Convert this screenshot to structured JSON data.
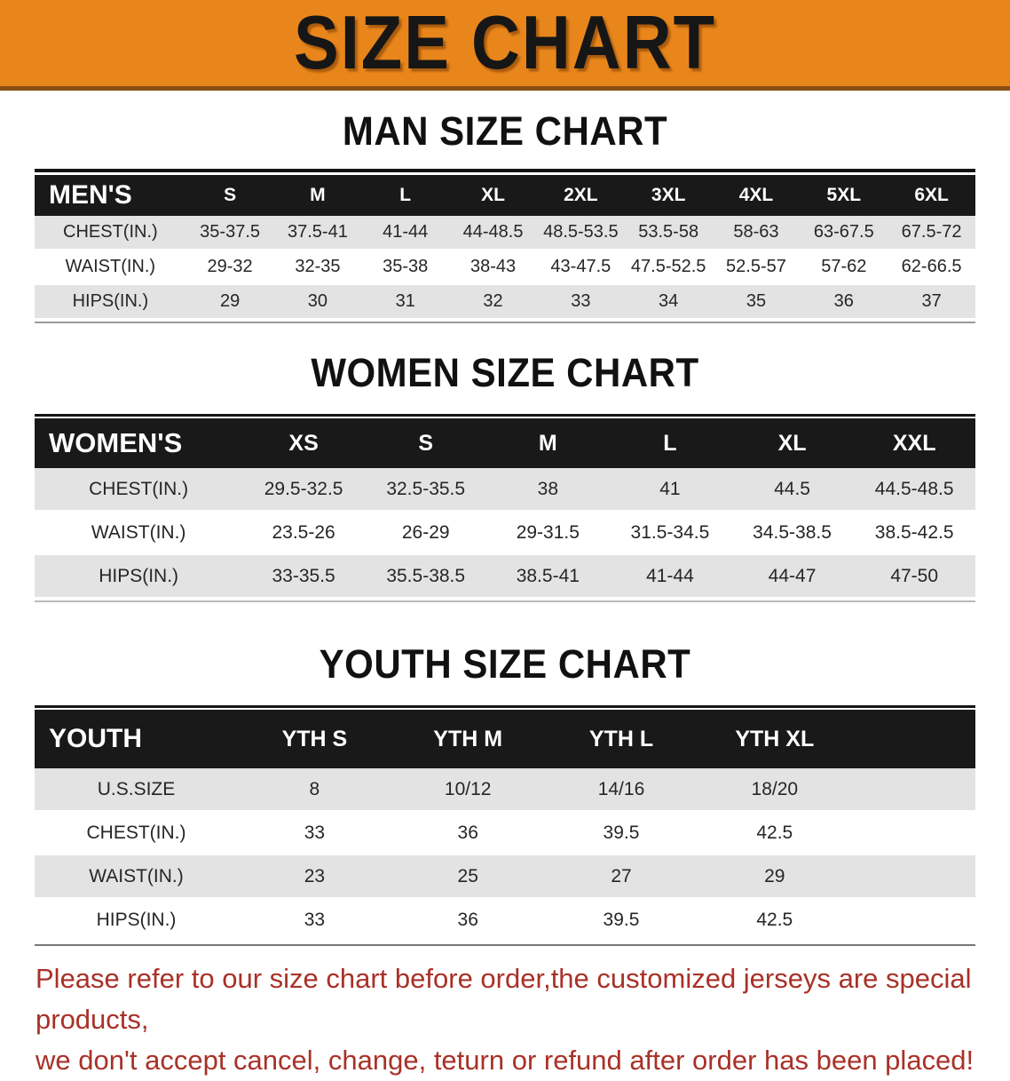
{
  "banner": {
    "title": "SIZE CHART",
    "bg_color": "#E9861B",
    "edge_color": "#8A4E12",
    "text_color": "#161616"
  },
  "man": {
    "heading": "MAN SIZE CHART",
    "table": {
      "header": [
        "MEN'S",
        "S",
        "M",
        "L",
        "XL",
        "2XL",
        "3XL",
        "4XL",
        "5XL",
        "6XL"
      ],
      "rows": [
        [
          "CHEST(IN.)",
          "35-37.5",
          "37.5-41",
          "41-44",
          "44-48.5",
          "48.5-53.5",
          "53.5-58",
          "58-63",
          "63-67.5",
          "67.5-72"
        ],
        [
          "WAIST(IN.)",
          "29-32",
          "32-35",
          "35-38",
          "38-43",
          "43-47.5",
          "47.5-52.5",
          "52.5-57",
          "57-62",
          "62-66.5"
        ],
        [
          "HIPS(IN.)",
          "29",
          "30",
          "31",
          "32",
          "33",
          "34",
          "35",
          "36",
          "37"
        ]
      ]
    }
  },
  "women": {
    "heading": "WOMEN SIZE CHART",
    "table": {
      "header": [
        "WOMEN'S",
        "XS",
        "S",
        "M",
        "L",
        "XL",
        "XXL"
      ],
      "rows": [
        [
          "CHEST(IN.)",
          "29.5-32.5",
          "32.5-35.5",
          "38",
          "41",
          "44.5",
          "44.5-48.5"
        ],
        [
          "WAIST(IN.)",
          "23.5-26",
          "26-29",
          "29-31.5",
          "31.5-34.5",
          "34.5-38.5",
          "38.5-42.5"
        ],
        [
          "HIPS(IN.)",
          "33-35.5",
          "35.5-38.5",
          "38.5-41",
          "41-44",
          "44-47",
          "47-50"
        ]
      ]
    }
  },
  "youth": {
    "heading": "YOUTH SIZE CHART",
    "table": {
      "header": [
        "YOUTH",
        "YTH S",
        "YTH M",
        "YTH L",
        "YTH XL",
        ""
      ],
      "rows": [
        [
          "U.S.SIZE",
          "8",
          "10/12",
          "14/16",
          "18/20",
          ""
        ],
        [
          "CHEST(IN.)",
          "33",
          "36",
          "39.5",
          "42.5",
          ""
        ],
        [
          "WAIST(IN.)",
          "23",
          "25",
          "27",
          "29",
          ""
        ],
        [
          "HIPS(IN.)",
          "33",
          "36",
          "39.5",
          "42.5",
          ""
        ]
      ]
    }
  },
  "notice": {
    "line1": "Please refer to our size chart before order,the customized jerseys are special products,",
    "line2": "we don't accept cancel, change, teturn or refund after order has been placed!",
    "color": "#A93128"
  },
  "table_colors": {
    "header_bg": "#191919",
    "header_text": "#FFFFFF",
    "stripe_row_bg": "#E3E3E3",
    "plain_row_bg": "#FFFFFF",
    "cell_text": "#262626"
  }
}
